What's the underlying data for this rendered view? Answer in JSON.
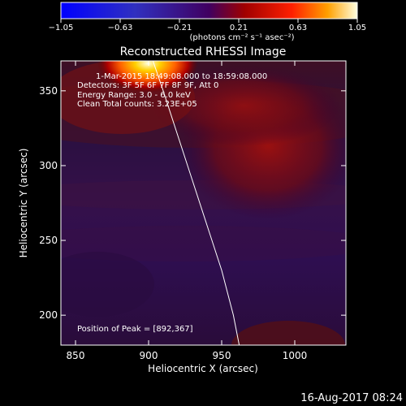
{
  "window": {
    "footer_date": "16-Aug-2017 08:24"
  },
  "colorbar": {
    "ticks": [
      "−1.05",
      "−0.63",
      "−0.21",
      "0.21",
      "0.63",
      "1.05"
    ],
    "units": "(photons cm⁻² s⁻¹ asec⁻²)"
  },
  "chart_data": {
    "type": "heatmap",
    "title": "Reconstructed RHESSI Image",
    "xlabel": "Heliocentric X (arcsec)",
    "ylabel": "Heliocentric Y (arcsec)",
    "xlim": [
      840,
      1035
    ],
    "ylim": [
      180,
      370
    ],
    "xticks": [
      850,
      900,
      950,
      1000
    ],
    "yticks": [
      200,
      250,
      300,
      350
    ],
    "color_range": [
      -1.05,
      1.05
    ],
    "colormap": "rainbow-heat",
    "annotations": [
      "1-Mar-2015 18:49:08.000 to 18:59:08.000",
      "Detectors: 3F 5F 6F 7F 8F 9F, Att 0",
      "Energy Range: 3.0 - 6.0 keV",
      "Clean    Total counts: 3.23E+05"
    ],
    "peak_label": "Position of Peak = [892,367]",
    "peak": [
      892,
      367
    ],
    "limb_curve": [
      [
        903,
        370
      ],
      [
        910,
        350
      ],
      [
        920,
        320
      ],
      [
        930,
        290
      ],
      [
        940,
        260
      ],
      [
        950,
        230
      ],
      [
        958,
        200
      ],
      [
        962,
        180
      ]
    ]
  }
}
